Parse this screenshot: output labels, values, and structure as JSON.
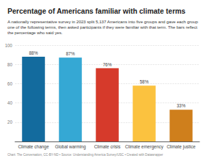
{
  "chart_data": {
    "type": "bar",
    "title": "Percentage of Americans familiar with climate terms",
    "subtitle": "A nationally representative survey in 2023 split 5,137 Americans into five groups and gave each group one of the following terms, then asked participants if they were familiar with that term. The bars reflect the percentage who said yes.",
    "footer": "Chart: The Conversation, CC-BY-ND • Source: Understanding America Survey/USC • Created with Datawrapper",
    "categories": [
      "Climate change",
      "Global warming",
      "Climate crisis",
      "Climate emergency",
      "Climate justice"
    ],
    "values": [
      88,
      87,
      76,
      58,
      33
    ],
    "value_labels": [
      "88%",
      "87%",
      "76%",
      "58%",
      "33%"
    ],
    "colors": [
      "#136b9e",
      "#35a8d4",
      "#d63a2b",
      "#fbc23f",
      "#cf7f1c"
    ],
    "ylim": [
      0,
      100
    ],
    "yticks": [
      20,
      40,
      60,
      80,
      100
    ],
    "grid": true,
    "data_labels": true
  }
}
